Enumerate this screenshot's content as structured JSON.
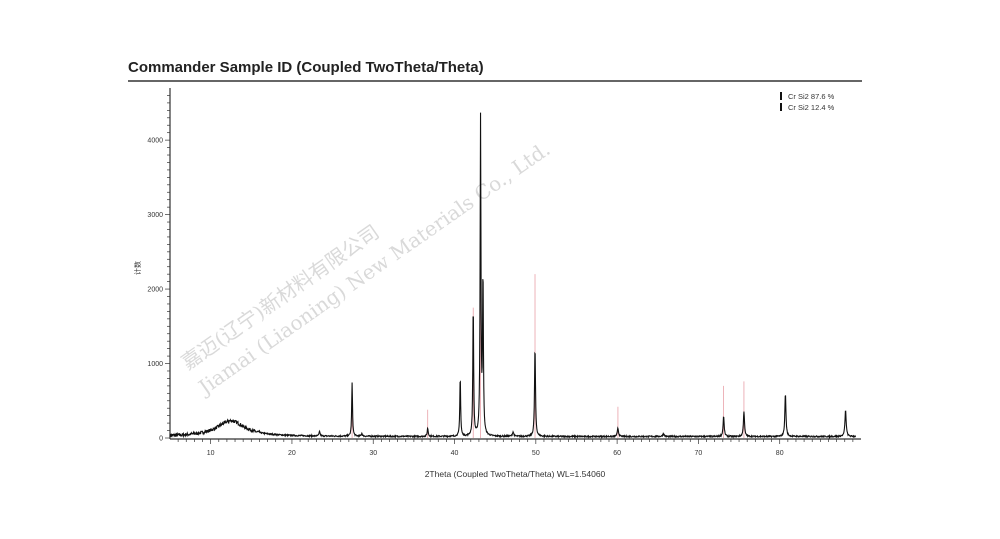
{
  "chart_data": {
    "type": "line",
    "title": "Commander Sample ID (Coupled TwoTheta/Theta)",
    "xlabel": "2Theta (Coupled TwoTheta/Theta) WL=1.54060",
    "ylabel": "计数",
    "xlim": [
      5,
      90
    ],
    "ylim": [
      0,
      4700
    ],
    "xticks": [
      10,
      20,
      30,
      40,
      50,
      60,
      70,
      80
    ],
    "yticks": [
      0,
      1000,
      2000,
      3000,
      4000
    ],
    "grid": false,
    "legend_position": "top-right",
    "legend": [
      {
        "label": "Cr Si2  87.6 %",
        "color": "#111111"
      },
      {
        "label": "Cr Si2  12.4 %",
        "color": "#111111"
      }
    ],
    "series": [
      {
        "color": "#111111",
        "baseline": 20,
        "peaks": [
          {
            "x": 12.5,
            "y": 210,
            "fwhm": 3.2
          },
          {
            "x": 23.4,
            "y": 60,
            "fwhm": 0.15
          },
          {
            "x": 27.4,
            "y": 720,
            "fwhm": 0.12
          },
          {
            "x": 28.6,
            "y": 40,
            "fwhm": 0.15
          },
          {
            "x": 36.7,
            "y": 110,
            "fwhm": 0.15
          },
          {
            "x": 40.7,
            "y": 810,
            "fwhm": 0.12
          },
          {
            "x": 42.3,
            "y": 1760,
            "fwhm": 0.12
          },
          {
            "x": 43.2,
            "y": 4260,
            "fwhm": 0.12
          },
          {
            "x": 43.5,
            "y": 2130,
            "fwhm": 0.12
          },
          {
            "x": 47.2,
            "y": 60,
            "fwhm": 0.2
          },
          {
            "x": 49.9,
            "y": 1200,
            "fwhm": 0.14
          },
          {
            "x": 60.1,
            "y": 110,
            "fwhm": 0.18
          },
          {
            "x": 65.7,
            "y": 40,
            "fwhm": 0.2
          },
          {
            "x": 73.1,
            "y": 270,
            "fwhm": 0.16
          },
          {
            "x": 75.6,
            "y": 340,
            "fwhm": 0.16
          },
          {
            "x": 80.7,
            "y": 580,
            "fwhm": 0.16
          },
          {
            "x": 88.1,
            "y": 350,
            "fwhm": 0.18
          }
        ]
      }
    ],
    "reference_sticks": [
      {
        "x": 27.4,
        "y": 700,
        "color": "#e8a0a8"
      },
      {
        "x": 36.7,
        "y": 380,
        "color": "#e8a0a8"
      },
      {
        "x": 42.3,
        "y": 1750,
        "color": "#e8a0a8"
      },
      {
        "x": 43.2,
        "y": 4250,
        "color": "#e8a0a8"
      },
      {
        "x": 49.9,
        "y": 2200,
        "color": "#e8a0a8"
      },
      {
        "x": 60.1,
        "y": 420,
        "color": "#e8a0a8"
      },
      {
        "x": 73.1,
        "y": 700,
        "color": "#e8a0a8"
      },
      {
        "x": 75.6,
        "y": 760,
        "color": "#e8a0a8"
      }
    ]
  },
  "watermark": {
    "cn": "嘉迈(辽宁)新材料有限公司",
    "en": "Jiamai (Liaoning) New Materials Co., Ltd."
  }
}
